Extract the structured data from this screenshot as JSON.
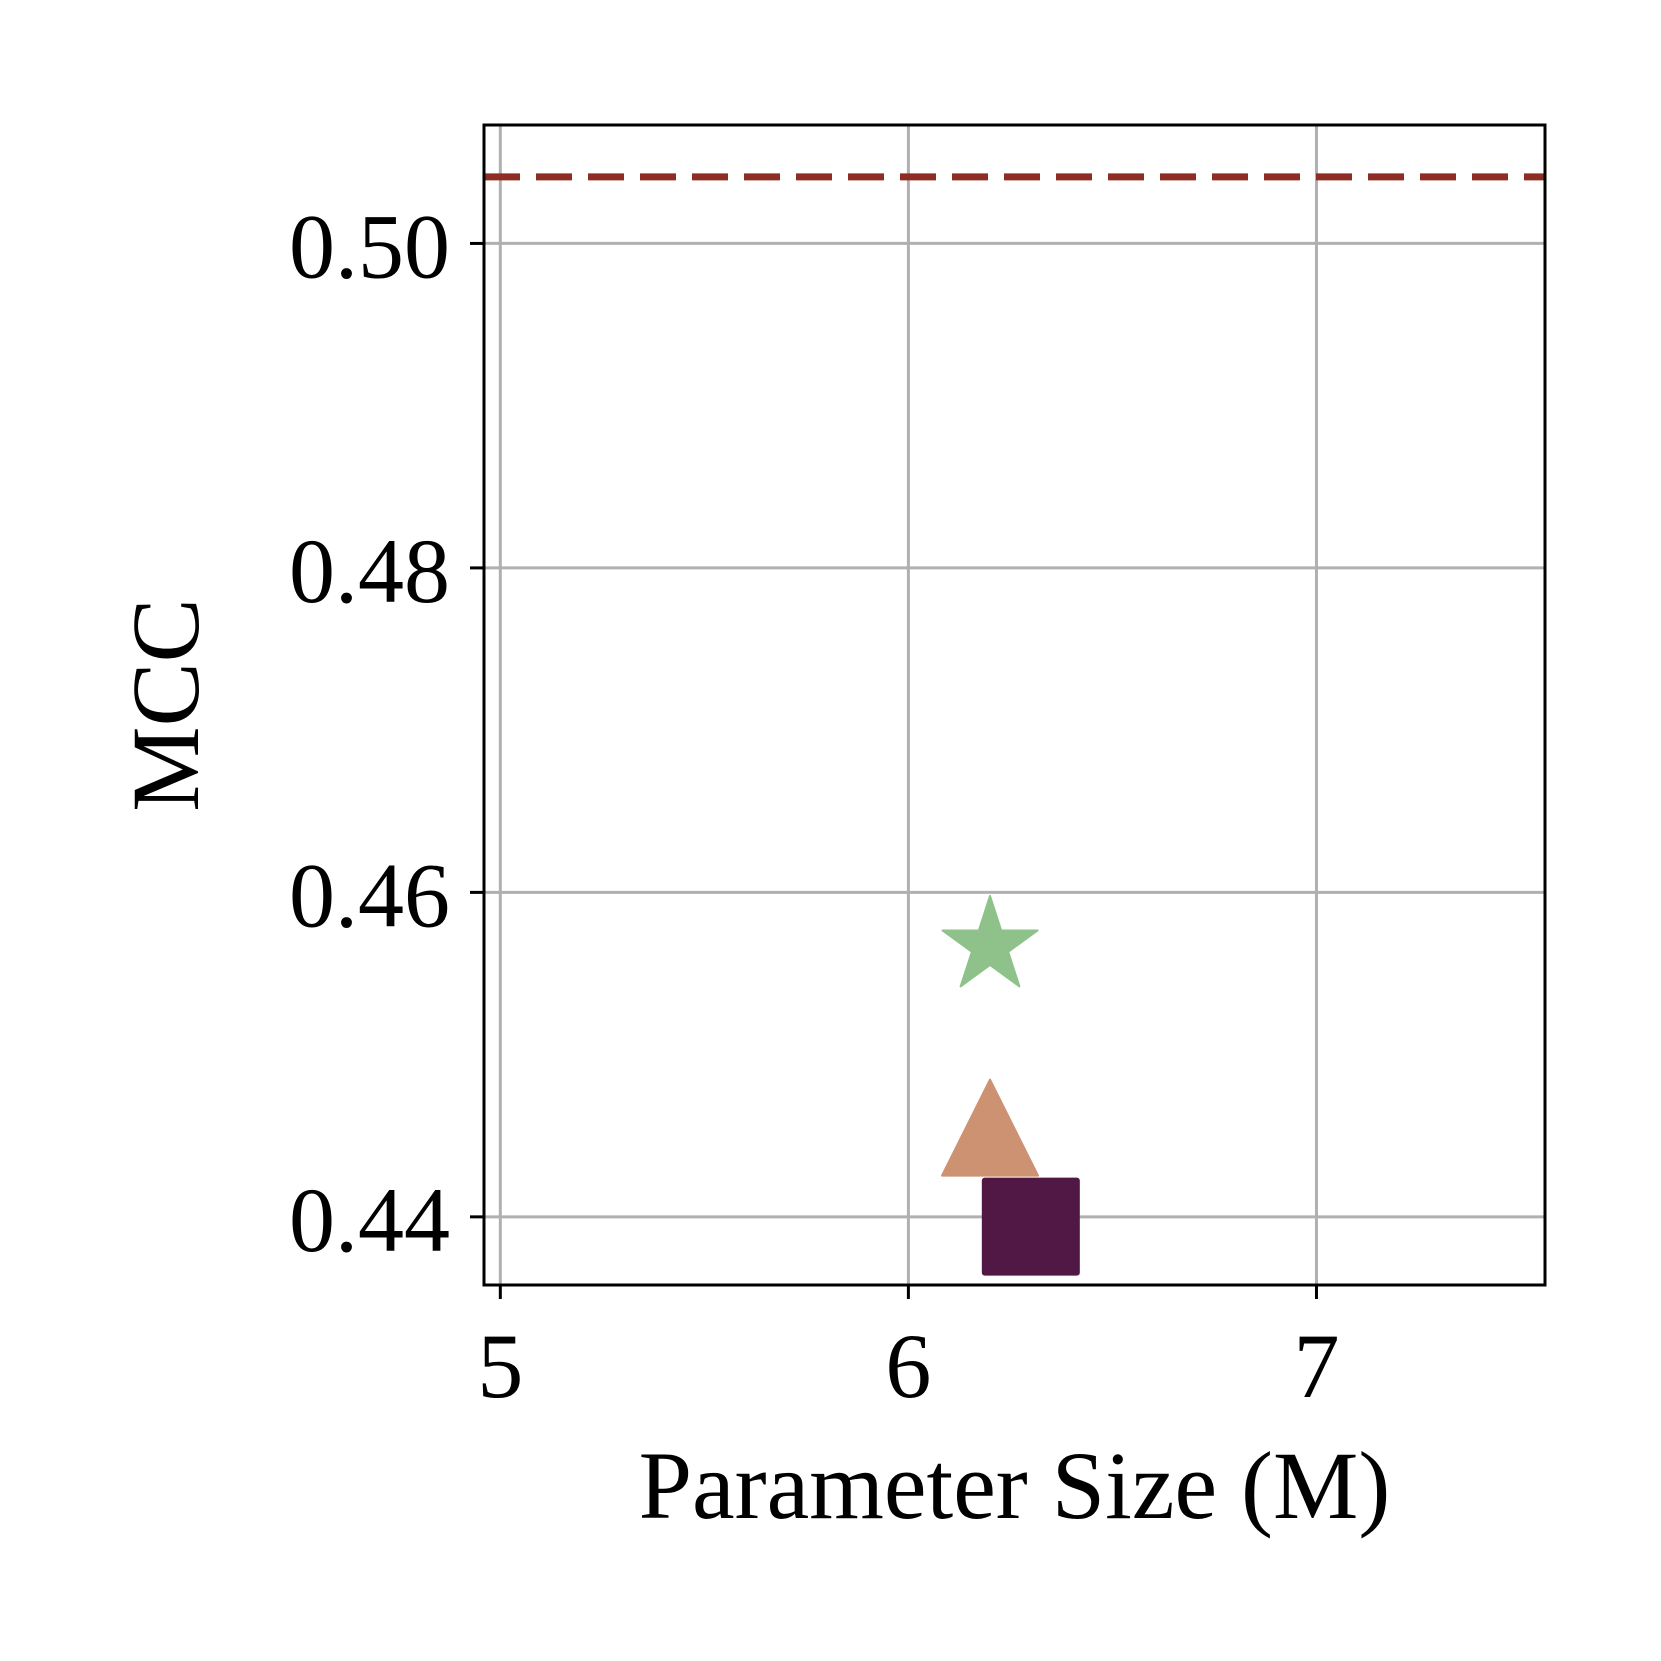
{
  "chart_data": {
    "type": "scatter",
    "title": "",
    "xlabel": "Parameter Size (M)",
    "ylabel": "MCC",
    "xlim": [
      4.96,
      7.56
    ],
    "ylim": [
      0.4358,
      0.5073
    ],
    "xticks": [
      5,
      6,
      7
    ],
    "xtick_labels": [
      "5",
      "6",
      "7"
    ],
    "yticks": [
      0.44,
      0.46,
      0.48,
      0.5
    ],
    "ytick_labels": [
      "0.44",
      "0.46",
      "0.48",
      "0.50"
    ],
    "grid": true,
    "legend": "none",
    "points": [
      {
        "x": 6.2,
        "y": 0.4567,
        "marker": "star",
        "color": "#8fc28a"
      },
      {
        "x": 6.2,
        "y": 0.4455,
        "marker": "triangle",
        "color": "#cc9272"
      },
      {
        "x": 6.3,
        "y": 0.4394,
        "marker": "square",
        "color": "#511745"
      }
    ],
    "reference_lines": [
      {
        "orientation": "horizontal",
        "y": 0.5041,
        "style": "dashed",
        "color": "#8f2d24"
      }
    ]
  }
}
